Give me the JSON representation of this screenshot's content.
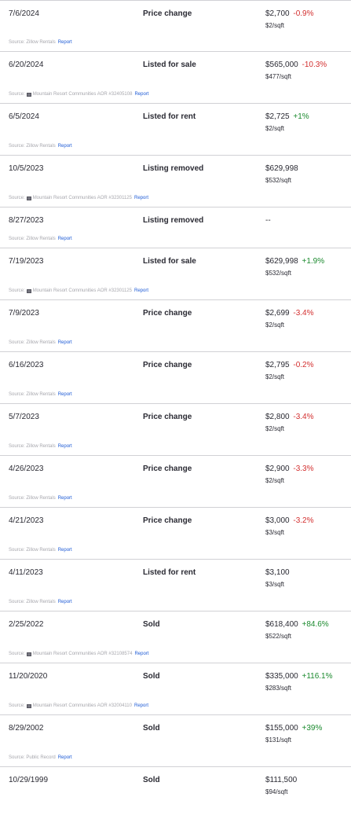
{
  "rows": [
    {
      "date": "7/6/2024",
      "event": "Price change",
      "price": "$2,700",
      "change": "-0.9%",
      "dir": "neg",
      "sqft": "$2/sqft",
      "source": "Source: Zillow Rentals",
      "logo": false,
      "report": "Report"
    },
    {
      "date": "6/20/2024",
      "event": "Listed for sale",
      "price": "$565,000",
      "change": "-10.3%",
      "dir": "neg",
      "sqft": "$477/sqft",
      "source_pre": "Source:",
      "source": "Mountain Resort Communities AOR #32405108",
      "logo": true,
      "report": "Report"
    },
    {
      "date": "6/5/2024",
      "event": "Listed for rent",
      "price": "$2,725",
      "change": "+1%",
      "dir": "pos",
      "sqft": "$2/sqft",
      "source": "Source: Zillow Rentals",
      "logo": false,
      "report": "Report"
    },
    {
      "date": "10/5/2023",
      "event": "Listing removed",
      "price": "$629,998",
      "change": "",
      "dir": "",
      "sqft": "$532/sqft",
      "source_pre": "Source:",
      "source": "Mountain Resort Communities AOR #32301125",
      "logo": true,
      "report": "Report"
    },
    {
      "date": "8/27/2023",
      "event": "Listing removed",
      "price": "--",
      "change": "",
      "dir": "",
      "sqft": "",
      "source": "Source: Zillow Rentals",
      "logo": false,
      "report": "Report",
      "short": true
    },
    {
      "date": "7/19/2023",
      "event": "Listed for sale",
      "price": "$629,998",
      "change": "+1.9%",
      "dir": "pos",
      "sqft": "$532/sqft",
      "source_pre": "Source:",
      "source": "Mountain Resort Communities AOR #32301125",
      "logo": true,
      "report": "Report"
    },
    {
      "date": "7/9/2023",
      "event": "Price change",
      "price": "$2,699",
      "change": "-3.4%",
      "dir": "neg",
      "sqft": "$2/sqft",
      "source": "Source: Zillow Rentals",
      "logo": false,
      "report": "Report"
    },
    {
      "date": "6/16/2023",
      "event": "Price change",
      "price": "$2,795",
      "change": "-0.2%",
      "dir": "neg",
      "sqft": "$2/sqft",
      "source": "Source: Zillow Rentals",
      "logo": false,
      "report": "Report"
    },
    {
      "date": "5/7/2023",
      "event": "Price change",
      "price": "$2,800",
      "change": "-3.4%",
      "dir": "neg",
      "sqft": "$2/sqft",
      "source": "Source: Zillow Rentals",
      "logo": false,
      "report": "Report"
    },
    {
      "date": "4/26/2023",
      "event": "Price change",
      "price": "$2,900",
      "change": "-3.3%",
      "dir": "neg",
      "sqft": "$2/sqft",
      "source": "Source: Zillow Rentals",
      "logo": false,
      "report": "Report"
    },
    {
      "date": "4/21/2023",
      "event": "Price change",
      "price": "$3,000",
      "change": "-3.2%",
      "dir": "neg",
      "sqft": "$3/sqft",
      "source": "Source: Zillow Rentals",
      "logo": false,
      "report": "Report"
    },
    {
      "date": "4/11/2023",
      "event": "Listed for rent",
      "price": "$3,100",
      "change": "",
      "dir": "",
      "sqft": "$3/sqft",
      "source": "Source: Zillow Rentals",
      "logo": false,
      "report": "Report"
    },
    {
      "date": "2/25/2022",
      "event": "Sold",
      "price": "$618,400",
      "change": "+84.6%",
      "dir": "pos",
      "sqft": "$522/sqft",
      "source_pre": "Source:",
      "source": "Mountain Resort Communities AOR #32108574",
      "logo": true,
      "report": "Report"
    },
    {
      "date": "11/20/2020",
      "event": "Sold",
      "price": "$335,000",
      "change": "+116.1%",
      "dir": "pos",
      "sqft": "$283/sqft",
      "source_pre": "Source:",
      "source": "Mountain Resort Communities AOR #32004110",
      "logo": true,
      "report": "Report"
    },
    {
      "date": "8/29/2002",
      "event": "Sold",
      "price": "$155,000",
      "change": "+39%",
      "dir": "pos",
      "sqft": "$131/sqft",
      "source": "Source: Public Record",
      "logo": false,
      "report": "Report"
    },
    {
      "date": "10/29/1999",
      "event": "Sold",
      "price": "$111,500",
      "change": "",
      "dir": "",
      "sqft": "$94/sqft",
      "source": "",
      "logo": false,
      "report": "",
      "last": true
    }
  ]
}
